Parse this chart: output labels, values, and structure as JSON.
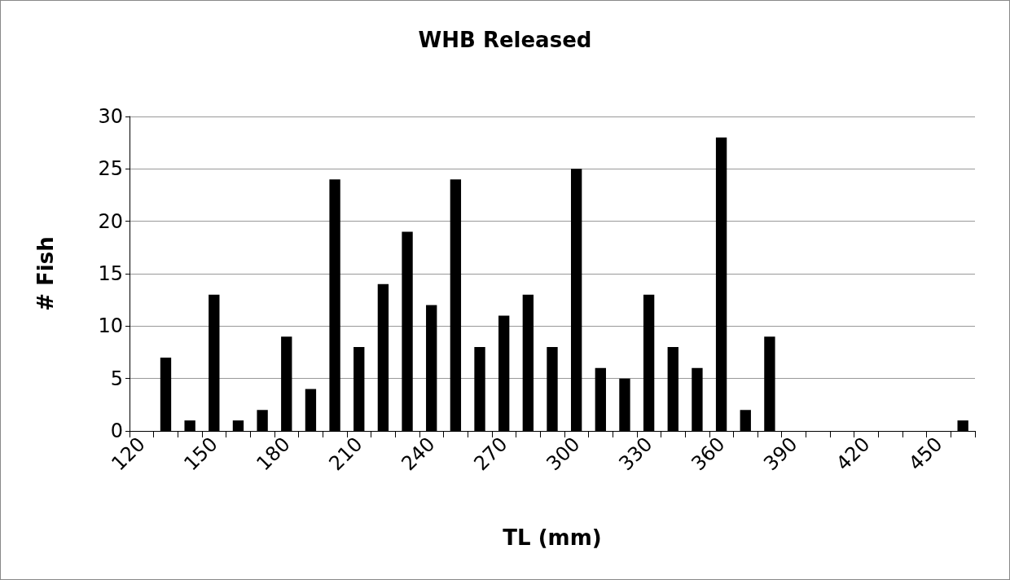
{
  "chart_data": {
    "type": "bar",
    "title": "WHB Released",
    "xlabel": "TL (mm)",
    "ylabel": "# Fish",
    "categories": [
      "120",
      null,
      null,
      "150",
      null,
      null,
      "180",
      null,
      null,
      "210",
      null,
      null,
      "240",
      null,
      null,
      "270",
      null,
      null,
      "300",
      null,
      null,
      "330",
      null,
      null,
      "360",
      null,
      null,
      "390",
      null,
      null,
      "420",
      null,
      null,
      "450",
      null
    ],
    "values": [
      0,
      7,
      1,
      13,
      1,
      2,
      9,
      4,
      24,
      8,
      14,
      19,
      12,
      24,
      8,
      11,
      13,
      8,
      25,
      6,
      5,
      13,
      8,
      6,
      28,
      2,
      9,
      0,
      0,
      0,
      0,
      0,
      0,
      0,
      1
    ],
    "color": "#000000",
    "ylim": [
      0,
      30
    ],
    "yticks": [
      0,
      5,
      10,
      15,
      20,
      25,
      30
    ],
    "grid": "y"
  }
}
